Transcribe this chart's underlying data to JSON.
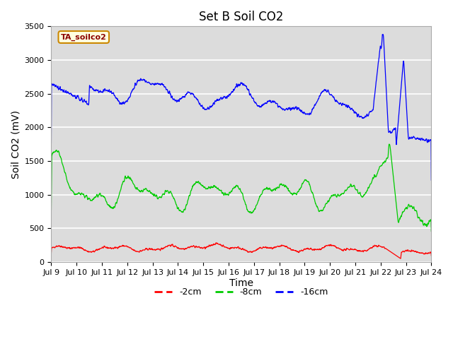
{
  "title": "Set B Soil CO2",
  "ylabel": "Soil CO2 (mV)",
  "xlabel": "Time",
  "legend_label": "TA_soilco2",
  "line_labels": [
    "-2cm",
    "-8cm",
    "-16cm"
  ],
  "line_colors": [
    "#ff0000",
    "#00cc00",
    "#0000ff"
  ],
  "ylim": [
    0,
    3500
  ],
  "xlim_days": 15,
  "xtick_labels": [
    "Jul 9",
    "Jul 10",
    "Jul 11",
    "Jul 12",
    "Jul 13",
    "Jul 14",
    "Jul 15",
    "Jul 16",
    "Jul 17",
    "Jul 18",
    "Jul 19",
    "Jul 20",
    "Jul 21",
    "Jul 22",
    "Jul 23",
    "Jul 24"
  ],
  "yticks": [
    0,
    500,
    1000,
    1500,
    2000,
    2500,
    3000,
    3500
  ],
  "bg_color": "#dcdcdc",
  "fig_color": "#ffffff",
  "grid_color": "#ffffff",
  "title_fontsize": 12,
  "axis_fontsize": 10,
  "tick_fontsize": 8,
  "legend_box_facecolor": "#ffffe0",
  "legend_box_edgecolor": "#cc8800",
  "legend_label_color": "#8b0000",
  "n_points": 1500,
  "seed": 42
}
